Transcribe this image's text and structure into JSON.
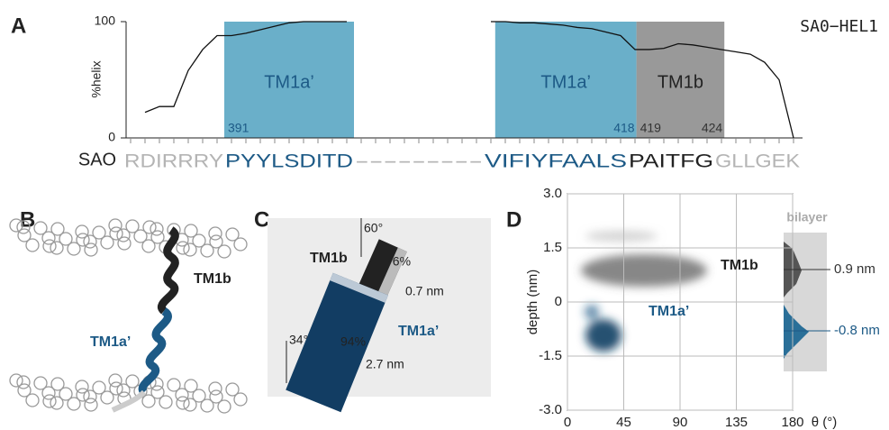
{
  "figure_label": "SA0−HEL1",
  "panel_labels": [
    "A",
    "B",
    "C",
    "D"
  ],
  "chart_data": [
    {
      "type": "line",
      "ylabel": "%helix",
      "row_label": "SAO",
      "ylim": [
        0,
        100
      ],
      "yticks": [
        0,
        100
      ],
      "sequence_segments": [
        {
          "text": "RDIRRRY",
          "color": "#b4b4b4"
        },
        {
          "text": "PYYLSDITD",
          "color": "#1d5a86"
        },
        {
          "text": "---------",
          "color": "#b4b4b4"
        },
        {
          "text": "VIFIYFAALS",
          "color": "#1d5a86"
        },
        {
          "text": "PAITFG",
          "color": "#222222"
        },
        {
          "text": "GLLGEK",
          "color": "#b4b4b4"
        }
      ],
      "values": [
        null,
        22,
        27,
        27,
        58,
        76,
        88,
        88,
        90,
        93,
        96,
        99,
        100,
        100,
        100,
        100,
        null,
        null,
        null,
        null,
        null,
        null,
        null,
        null,
        null,
        100,
        100,
        99,
        99,
        98,
        97,
        95,
        94,
        91,
        88,
        76,
        76,
        77,
        81,
        80,
        78,
        76,
        74,
        72,
        65,
        50,
        0
      ],
      "color": "#111111",
      "regions": [
        {
          "label": "TM1a’",
          "start": 6.5,
          "end": 15.5,
          "color": "#6aafc9",
          "start_label": "391"
        },
        {
          "label": "TM1a’",
          "start": 25.3,
          "end": 35.1,
          "color": "#6aafc9",
          "end_label": "418"
        },
        {
          "label": "TM1b",
          "start": 35.1,
          "end": 41.2,
          "color": "#999999",
          "start_label": "419",
          "end_label": "424"
        }
      ]
    },
    {
      "type": "heatmap",
      "xlabel": "θ (°)",
      "ylabel": "depth (nm)",
      "xlim": [
        0,
        180
      ],
      "xticks": [
        0,
        45,
        90,
        135,
        180
      ],
      "ylim": [
        -3,
        3
      ],
      "yticks": [
        {
          "value": 3,
          "label": "3.0"
        },
        {
          "value": 1.5,
          "label": "1.5"
        },
        0,
        {
          "value": -1.5,
          "label": "-1.5"
        },
        {
          "value": -3,
          "label": "-3.0"
        }
      ],
      "grid": true,
      "cluster_labels": [
        "TM1b",
        "TM1a’"
      ],
      "side_label": "bilayer",
      "markers": [
        {
          "value": 0.9,
          "label": "0.9 nm",
          "color": "#333333"
        },
        {
          "value": -0.8,
          "label": "-0.8 nm",
          "color": "#1d5a86"
        }
      ]
    }
  ],
  "panel_b": {
    "labels": [
      "TM1b",
      "TM1a’"
    ]
  },
  "panel_c": {
    "labels": [
      "60°",
      "76%",
      "0.7 nm",
      "TM1b",
      "34°",
      "94%",
      "2.7 nm",
      "TM1a’"
    ]
  }
}
